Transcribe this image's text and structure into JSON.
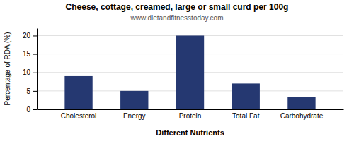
{
  "chart_data": {
    "type": "bar",
    "title": "Cheese, cottage, creamed, large or small curd per 100g",
    "subtitle": "www.dietandfitnesstoday.com",
    "xlabel": "Different Nutrients",
    "ylabel": "Percentage of RDA (%)",
    "categories": [
      "Cholesterol",
      "Energy",
      "Protein",
      "Total Fat",
      "Carbohydrate"
    ],
    "values": [
      9,
      5,
      20,
      7,
      3.3
    ],
    "color": "#253871",
    "ylim": [
      0,
      22
    ],
    "yticks": [
      0,
      5,
      10,
      15,
      20
    ],
    "grid": true
  }
}
